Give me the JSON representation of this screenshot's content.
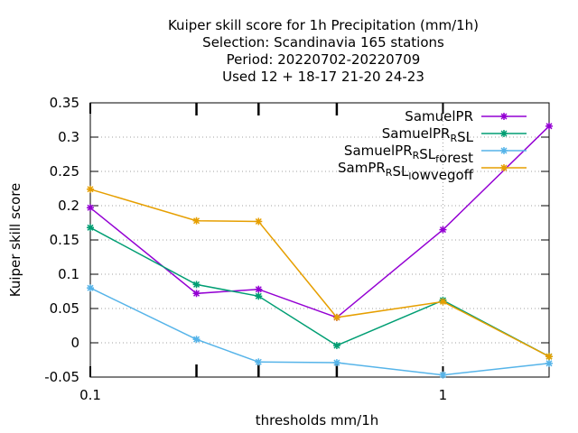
{
  "chart_data": {
    "type": "line",
    "title_lines": [
      "Kuiper skill score  for 1h Precipitation (mm/1h)",
      "Selection: Scandinavia    165 stations",
      "Period: 20220702-20220709",
      "Used  12 + 18-17 21-20 24-23"
    ],
    "xlabel": "thresholds mm/1h",
    "ylabel": "Kuiper skill score",
    "xscale": "log",
    "xlim": [
      0.1,
      2.0
    ],
    "ylim": [
      -0.05,
      0.35
    ],
    "x_ticks": [
      {
        "value": 0.1,
        "label": "0.1"
      },
      {
        "value": 1,
        "label": "1"
      }
    ],
    "x_minor_ticks": [
      0.2,
      0.3,
      0.5
    ],
    "y_ticks": [
      {
        "value": -0.05,
        "label": "-0.05"
      },
      {
        "value": 0,
        "label": "0"
      },
      {
        "value": 0.05,
        "label": "0.05"
      },
      {
        "value": 0.1,
        "label": "0.1"
      },
      {
        "value": 0.15,
        "label": "0.15"
      },
      {
        "value": 0.2,
        "label": "0.2"
      },
      {
        "value": 0.25,
        "label": "0.25"
      },
      {
        "value": 0.3,
        "label": "0.3"
      },
      {
        "value": 0.35,
        "label": "0.35"
      }
    ],
    "grid": "dotted at major x and y ticks",
    "legend_position": "top-right",
    "x": [
      0.1,
      0.2,
      0.3,
      0.5,
      1.0,
      2.0
    ],
    "series": [
      {
        "name": "SamuelPR",
        "name_parts": [
          [
            "SamuelPR",
            "normal"
          ]
        ],
        "color": "#9400d3",
        "values": [
          0.197,
          0.072,
          0.078,
          0.037,
          0.165,
          0.316
        ]
      },
      {
        "name": "SamuelPR_RSL",
        "name_parts": [
          [
            "SamuelPR",
            "normal"
          ],
          [
            "R",
            "sub"
          ],
          [
            "SL",
            "normal"
          ]
        ],
        "color": "#009e73",
        "values": [
          0.168,
          0.085,
          0.068,
          -0.004,
          0.062,
          -0.02
        ]
      },
      {
        "name": "SamuelPR_RSL_forest",
        "name_parts": [
          [
            "SamuelPR",
            "normal"
          ],
          [
            "R",
            "sub"
          ],
          [
            "SL",
            "normal"
          ],
          [
            "f",
            "sub"
          ],
          [
            "orest",
            "normal"
          ]
        ],
        "color": "#56b4e9",
        "values": [
          0.08,
          0.005,
          -0.028,
          -0.029,
          -0.047,
          -0.03
        ]
      },
      {
        "name": "SamPR_RSL_lowvegoff",
        "name_parts": [
          [
            "SamPR",
            "normal"
          ],
          [
            "R",
            "sub"
          ],
          [
            "SL",
            "normal"
          ],
          [
            "l",
            "sub"
          ],
          [
            "owvegoff",
            "normal"
          ]
        ],
        "color": "#e69f00",
        "values": [
          0.224,
          0.178,
          0.177,
          0.037,
          0.06,
          -0.02
        ]
      }
    ]
  }
}
